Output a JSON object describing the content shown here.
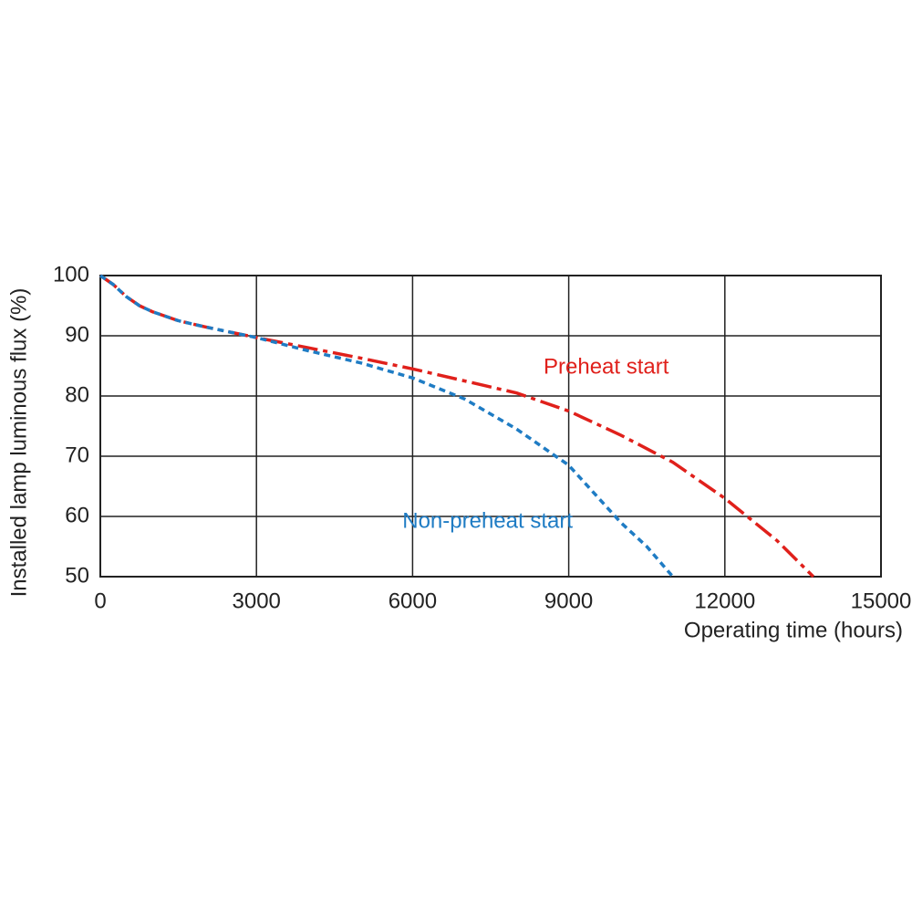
{
  "chart_data": {
    "type": "line",
    "x_label": "Operating time (hours)",
    "y_label": "Installed lamp luminous flux  (%)",
    "xlim": [
      0,
      15000
    ],
    "xticks": [
      0,
      3000,
      6000,
      9000,
      12000,
      15000
    ],
    "ylim": [
      50,
      100
    ],
    "yticks": [
      50,
      60,
      70,
      80,
      90,
      100
    ],
    "grid": true,
    "series": [
      {
        "name": "Preheat start",
        "color": "#e0201b",
        "dash": "dash-dot",
        "x": [
          0,
          250,
          500,
          750,
          1000,
          1500,
          2000,
          3000,
          4000,
          5000,
          6000,
          7000,
          8000,
          9000,
          10000,
          11000,
          12000,
          13000,
          13700
        ],
        "values": [
          100,
          98.5,
          96.5,
          95,
          94,
          92.5,
          91.5,
          89.7,
          88,
          86.3,
          84.5,
          82.5,
          80.5,
          77.5,
          73.5,
          69,
          63,
          56,
          50
        ]
      },
      {
        "name": "Non-preheat start",
        "color": "#1f7cc4",
        "dash": "dashed",
        "x": [
          0,
          250,
          500,
          750,
          1000,
          1500,
          2000,
          3000,
          4000,
          5000,
          6000,
          7000,
          8000,
          9000,
          10000,
          10500,
          11000
        ],
        "values": [
          100,
          98.5,
          96.5,
          95,
          94,
          92.5,
          91.5,
          89.7,
          87.5,
          85.5,
          83,
          79.5,
          74.5,
          68.5,
          59,
          55,
          50
        ]
      }
    ]
  }
}
